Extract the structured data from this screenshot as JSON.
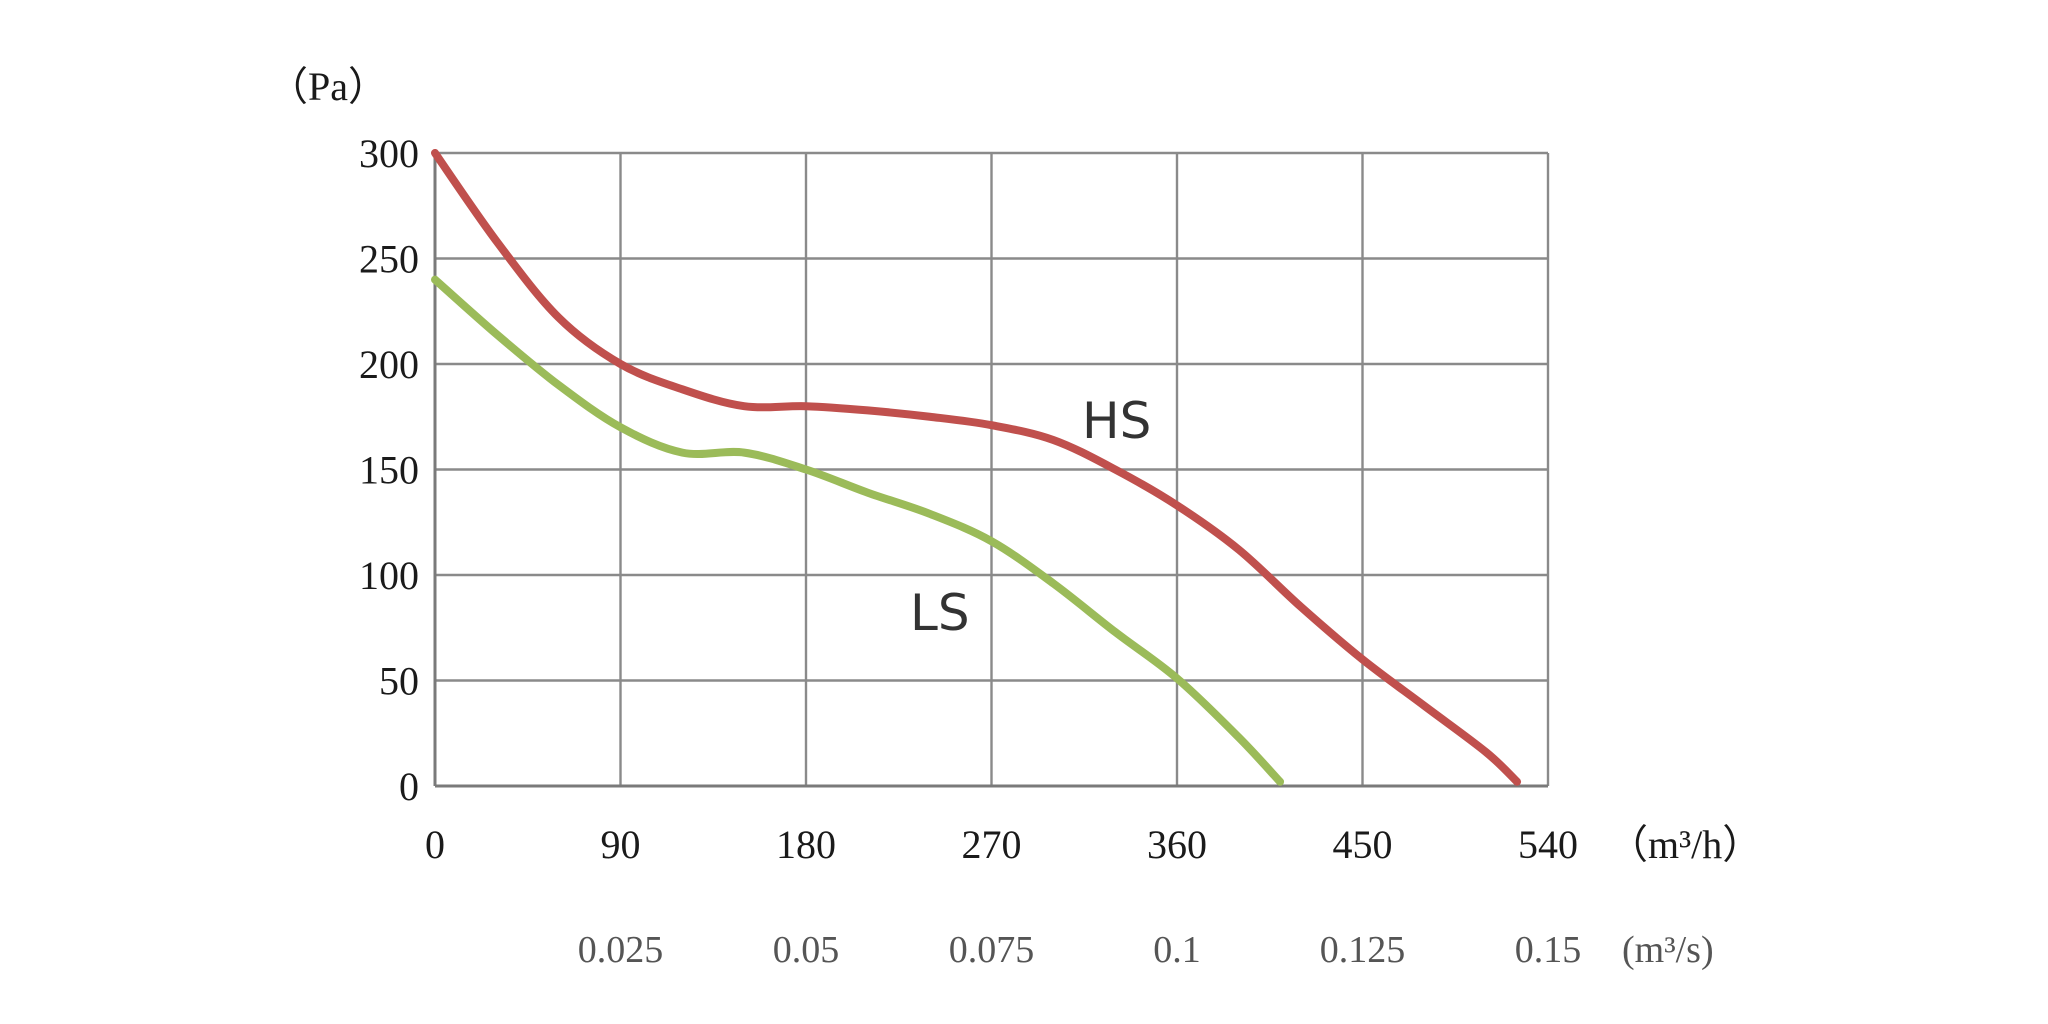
{
  "chart_data": {
    "type": "line",
    "ylabel": "（Pa）",
    "xunit": "（m³/h）",
    "x2unit": "(m³/s)",
    "xlim": [
      0,
      540
    ],
    "ylim": [
      0,
      300
    ],
    "xticks": [
      0,
      90,
      180,
      270,
      360,
      450,
      540
    ],
    "xtick_labels": [
      "0",
      "90",
      "180",
      "270",
      "360",
      "450",
      "540"
    ],
    "yticks": [
      0,
      50,
      100,
      150,
      200,
      250,
      300
    ],
    "ytick_labels": [
      "0",
      "50",
      "100",
      "150",
      "200",
      "250",
      "300"
    ],
    "secondary_xticks": [
      90,
      180,
      270,
      360,
      450,
      540
    ],
    "secondary_xtick_labels": [
      "0.025",
      "0.05",
      "0.075",
      "0.1",
      "0.125",
      "0.15"
    ],
    "grid": true,
    "series": [
      {
        "name": "HS",
        "color": "#c0504d",
        "x": [
          0,
          30,
          60,
          90,
          120,
          150,
          180,
          210,
          240,
          270,
          300,
          330,
          360,
          390,
          420,
          450,
          480,
          510,
          525
        ],
        "y": [
          300,
          258,
          222,
          200,
          188,
          180,
          180,
          178,
          175,
          171,
          164,
          150,
          133,
          112,
          85,
          60,
          38,
          16,
          2
        ]
      },
      {
        "name": "LS",
        "color": "#9bbb59",
        "x": [
          0,
          30,
          60,
          90,
          120,
          150,
          180,
          210,
          240,
          270,
          300,
          330,
          360,
          390,
          410
        ],
        "y": [
          240,
          214,
          190,
          170,
          158,
          158,
          150,
          139,
          129,
          116,
          96,
          73,
          51,
          23,
          2
        ]
      }
    ]
  }
}
